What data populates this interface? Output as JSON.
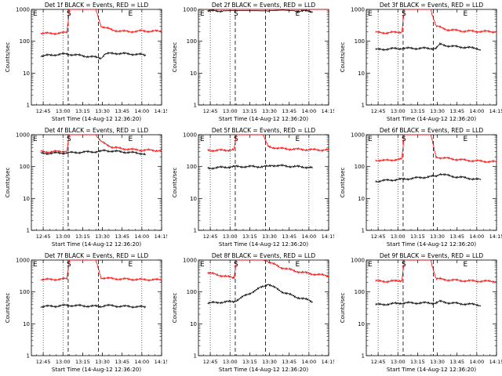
{
  "chart_data": [
    {
      "type": "line",
      "title": "Det 1f BLACK = Events, RED = LLD",
      "xlabel": "Start Time (14-Aug-12 12:36:20)",
      "ylabel": "Counts/sec",
      "yscale": "log",
      "ylim": [
        1,
        1000
      ],
      "xlim": [
        "12:36",
        "14:15"
      ],
      "x_ticks": [
        "12:45",
        "13:00",
        "13:15",
        "13:30",
        "13:45",
        "14:00",
        "14:15"
      ],
      "y_ticks": [
        "1",
        "10",
        "100",
        "1000"
      ],
      "markers": [
        "E",
        "S",
        "E"
      ],
      "gap": [
        "13:04",
        "13:27"
      ],
      "series": [
        {
          "color": "#ff0000",
          "x": [
            "12:43",
            "12:50",
            "12:58",
            "13:03",
            "13:05",
            "13:25",
            "13:29",
            "13:38",
            "13:50",
            "14:00",
            "14:15"
          ],
          "values": [
            180,
            175,
            180,
            190,
            1000,
            1000,
            300,
            220,
            200,
            210,
            205
          ]
        },
        {
          "color": "#000000",
          "x": [
            "12:43",
            "12:45",
            "12:55",
            "13:03",
            "13:29",
            "13:32",
            "13:40",
            "13:50",
            "14:00",
            "14:03"
          ],
          "values": [
            35,
            35,
            38,
            40,
            30,
            40,
            42,
            40,
            38,
            36
          ]
        }
      ]
    },
    {
      "type": "line",
      "title": "Det 2f BLACK = Events, RED = LLD",
      "xlabel": "Start Time (14-Aug-12 12:36:20)",
      "ylabel": "Counts/sec",
      "yscale": "log",
      "ylim": [
        1,
        1000
      ],
      "xlim": [
        "12:36",
        "14:15"
      ],
      "x_ticks": [
        "12:45",
        "13:00",
        "13:15",
        "13:30",
        "13:45",
        "14:00",
        "14:15"
      ],
      "y_ticks": [
        "1",
        "10",
        "100",
        "1000"
      ],
      "markers": [
        "E",
        "S",
        "E"
      ],
      "gap": [
        "13:04",
        "13:27"
      ],
      "series": [
        {
          "color": "#ff0000",
          "x": [
            "12:43",
            "12:50",
            "12:58",
            "13:03",
            "13:05",
            "13:25",
            "13:29",
            "13:38",
            "13:50",
            "14:00",
            "14:15"
          ],
          "values": [
            1000,
            1000,
            1050,
            1100,
            1000,
            1000,
            1400,
            1100,
            1000,
            1000,
            1000
          ]
        },
        {
          "color": "#000000",
          "x": [
            "12:43",
            "12:45",
            "12:55",
            "13:03",
            "13:29",
            "13:32",
            "13:40",
            "13:50",
            "14:00",
            "14:03"
          ],
          "values": [
            900,
            900,
            900,
            920,
            900,
            920,
            950,
            900,
            880,
            850
          ]
        }
      ]
    },
    {
      "type": "line",
      "title": "Det 3f BLACK = Events, RED = LLD",
      "xlabel": "Start Time (14-Aug-12 12:36:20)",
      "ylabel": "Counts/sec",
      "yscale": "log",
      "ylim": [
        1,
        1000
      ],
      "xlim": [
        "12:36",
        "14:15"
      ],
      "x_ticks": [
        "12:45",
        "13:00",
        "13:15",
        "13:30",
        "13:45",
        "14:00",
        "14:15"
      ],
      "y_ticks": [
        "1",
        "10",
        "100",
        "1000"
      ],
      "markers": [
        "E",
        "S",
        "E"
      ],
      "gap": [
        "13:04",
        "13:27"
      ],
      "series": [
        {
          "color": "#ff0000",
          "x": [
            "12:43",
            "12:50",
            "12:58",
            "13:03",
            "13:05",
            "13:25",
            "13:29",
            "13:38",
            "13:50",
            "14:00",
            "14:15"
          ],
          "values": [
            190,
            185,
            190,
            200,
            1000,
            1000,
            300,
            230,
            210,
            205,
            200
          ]
        },
        {
          "color": "#000000",
          "x": [
            "12:43",
            "12:45",
            "12:55",
            "13:03",
            "13:29",
            "13:32",
            "13:40",
            "13:50",
            "14:00",
            "14:03"
          ],
          "values": [
            55,
            55,
            58,
            60,
            60,
            80,
            70,
            65,
            60,
            55
          ]
        }
      ]
    },
    {
      "type": "line",
      "title": "Det 4f BLACK = Events, RED = LLD",
      "xlabel": "Start Time (14-Aug-12 12:36:20)",
      "ylabel": "Counts/sec",
      "yscale": "log",
      "ylim": [
        1,
        1000
      ],
      "xlim": [
        "12:36",
        "14:15"
      ],
      "x_ticks": [
        "12:45",
        "13:00",
        "13:15",
        "13:30",
        "13:45",
        "14:00",
        "14:15"
      ],
      "y_ticks": [
        "1",
        "10",
        "100",
        "1000"
      ],
      "markers": [
        "E",
        "S",
        "E"
      ],
      "gap": [
        "13:04",
        "13:27"
      ],
      "series": [
        {
          "color": "#ff0000",
          "x": [
            "12:43",
            "12:50",
            "12:58",
            "13:03",
            "13:05",
            "13:25",
            "13:29",
            "13:38",
            "13:50",
            "14:00",
            "14:15"
          ],
          "values": [
            300,
            290,
            300,
            310,
            1000,
            1000,
            600,
            400,
            350,
            330,
            320
          ]
        },
        {
          "color": "#000000",
          "x": [
            "12:43",
            "12:45",
            "12:55",
            "13:03",
            "13:29",
            "13:32",
            "13:40",
            "13:50",
            "14:00",
            "14:03"
          ],
          "values": [
            260,
            260,
            265,
            270,
            300,
            320,
            300,
            280,
            260,
            240
          ]
        }
      ]
    },
    {
      "type": "line",
      "title": "Det 5f BLACK = Events, RED = LLD",
      "xlabel": "Start Time (14-Aug-12 12:36:20)",
      "ylabel": "Counts/sec",
      "yscale": "log",
      "ylim": [
        1,
        1000
      ],
      "xlim": [
        "12:36",
        "14:15"
      ],
      "x_ticks": [
        "12:45",
        "13:00",
        "13:15",
        "13:30",
        "13:45",
        "14:00",
        "14:15"
      ],
      "y_ticks": [
        "1",
        "10",
        "100",
        "1000"
      ],
      "markers": [
        "E",
        "S",
        "E"
      ],
      "gap": [
        "13:04",
        "13:27"
      ],
      "series": [
        {
          "color": "#ff0000",
          "x": [
            "12:43",
            "12:50",
            "12:58",
            "13:03",
            "13:05",
            "13:25",
            "13:29",
            "13:38",
            "13:50",
            "14:00",
            "14:15"
          ],
          "values": [
            330,
            320,
            330,
            340,
            1000,
            1000,
            420,
            370,
            350,
            340,
            330
          ]
        },
        {
          "color": "#000000",
          "x": [
            "12:43",
            "12:45",
            "12:55",
            "13:03",
            "13:29",
            "13:32",
            "13:40",
            "13:50",
            "14:00",
            "14:03"
          ],
          "values": [
            90,
            90,
            95,
            100,
            100,
            110,
            105,
            100,
            95,
            90
          ]
        }
      ]
    },
    {
      "type": "line",
      "title": "Det 6f BLACK = Events, RED = LLD",
      "xlabel": "Start Time (14-Aug-12 12:36:20)",
      "ylabel": "Counts/sec",
      "yscale": "log",
      "ylim": [
        1,
        1000
      ],
      "xlim": [
        "12:36",
        "14:15"
      ],
      "x_ticks": [
        "12:45",
        "13:00",
        "13:15",
        "13:30",
        "13:45",
        "14:00",
        "14:15"
      ],
      "y_ticks": [
        "1",
        "10",
        "100",
        "1000"
      ],
      "markers": [
        "E",
        "S",
        "E"
      ],
      "gap": [
        "13:04",
        "13:27"
      ],
      "series": [
        {
          "color": "#ff0000",
          "x": [
            "12:43",
            "12:50",
            "12:58",
            "13:03",
            "13:05",
            "13:25",
            "13:29",
            "13:38",
            "13:50",
            "14:00",
            "14:15"
          ],
          "values": [
            160,
            155,
            165,
            170,
            1000,
            1000,
            200,
            180,
            160,
            150,
            140
          ]
        },
        {
          "color": "#000000",
          "x": [
            "12:43",
            "12:45",
            "12:55",
            "13:03",
            "13:29",
            "13:32",
            "13:40",
            "13:50",
            "14:00",
            "14:03"
          ],
          "values": [
            35,
            35,
            38,
            40,
            50,
            60,
            50,
            45,
            40,
            38
          ]
        }
      ]
    },
    {
      "type": "line",
      "title": "Det 7f BLACK = Events, RED = LLD",
      "xlabel": "Start Time (14-Aug-12 12:36:20)",
      "ylabel": "Counts/sec",
      "yscale": "log",
      "ylim": [
        1,
        1000
      ],
      "xlim": [
        "12:36",
        "14:15"
      ],
      "x_ticks": [
        "12:45",
        "13:00",
        "13:15",
        "13:30",
        "13:45",
        "14:00",
        "14:15"
      ],
      "y_ticks": [
        "1",
        "10",
        "100",
        "1000"
      ],
      "markers": [
        "E",
        "S",
        "E"
      ],
      "gap": [
        "13:04",
        "13:27"
      ],
      "series": [
        {
          "color": "#ff0000",
          "x": [
            "12:43",
            "12:50",
            "12:58",
            "13:03",
            "13:05",
            "13:25",
            "13:29",
            "13:38",
            "13:50",
            "14:00",
            "14:15"
          ],
          "values": [
            250,
            245,
            250,
            260,
            1000,
            1000,
            280,
            260,
            250,
            245,
            240
          ]
        },
        {
          "color": "#000000",
          "x": [
            "12:43",
            "12:45",
            "12:55",
            "13:03",
            "13:29",
            "13:32",
            "13:40",
            "13:50",
            "14:00",
            "14:03"
          ],
          "values": [
            35,
            35,
            36,
            38,
            35,
            38,
            36,
            35,
            34,
            33
          ]
        }
      ]
    },
    {
      "type": "line",
      "title": "Det 8f BLACK = Events, RED = LLD",
      "xlabel": "Start Time (14-Aug-12 12:36:20)",
      "ylabel": "Counts/sec",
      "yscale": "log",
      "ylim": [
        1,
        1000
      ],
      "xlim": [
        "12:36",
        "14:15"
      ],
      "x_ticks": [
        "12:45",
        "13:00",
        "13:15",
        "13:30",
        "13:45",
        "14:00",
        "14:15"
      ],
      "y_ticks": [
        "1",
        "10",
        "100",
        "1000"
      ],
      "markers": [
        "E",
        "S",
        "E"
      ],
      "gap": [
        "13:04",
        "13:27"
      ],
      "series": [
        {
          "color": "#ff0000",
          "x": [
            "12:43",
            "12:50",
            "12:58",
            "13:03",
            "13:05",
            "13:25",
            "13:29",
            "13:38",
            "13:50",
            "14:00",
            "14:15"
          ],
          "values": [
            400,
            350,
            300,
            280,
            1000,
            1000,
            900,
            600,
            450,
            380,
            320
          ]
        },
        {
          "color": "#000000",
          "x": [
            "12:43",
            "12:45",
            "12:55",
            "13:03",
            "13:29",
            "13:32",
            "13:40",
            "13:50",
            "14:00",
            "14:03"
          ],
          "values": [
            45,
            45,
            48,
            50,
            180,
            150,
            100,
            70,
            55,
            48
          ]
        }
      ]
    },
    {
      "type": "line",
      "title": "Det 9f BLACK = Events, RED = LLD",
      "xlabel": "Start Time (14-Aug-12 12:36:20)",
      "ylabel": "Counts/sec",
      "yscale": "log",
      "ylim": [
        1,
        1000
      ],
      "xlim": [
        "12:36",
        "14:15"
      ],
      "x_ticks": [
        "12:45",
        "13:00",
        "13:15",
        "13:30",
        "13:45",
        "14:00",
        "14:15"
      ],
      "y_ticks": [
        "1",
        "10",
        "100",
        "1000"
      ],
      "markers": [
        "E",
        "S",
        "E"
      ],
      "gap": [
        "13:04",
        "13:27"
      ],
      "series": [
        {
          "color": "#ff0000",
          "x": [
            "12:43",
            "12:50",
            "12:58",
            "13:03",
            "13:05",
            "13:25",
            "13:29",
            "13:38",
            "13:50",
            "14:00",
            "14:15"
          ],
          "values": [
            220,
            215,
            220,
            230,
            1000,
            1000,
            260,
            240,
            225,
            220,
            215
          ]
        },
        {
          "color": "#000000",
          "x": [
            "12:43",
            "12:45",
            "12:55",
            "13:03",
            "13:29",
            "13:32",
            "13:40",
            "13:50",
            "14:00",
            "14:03"
          ],
          "values": [
            40,
            40,
            42,
            45,
            45,
            50,
            45,
            42,
            40,
            38
          ]
        }
      ]
    }
  ]
}
